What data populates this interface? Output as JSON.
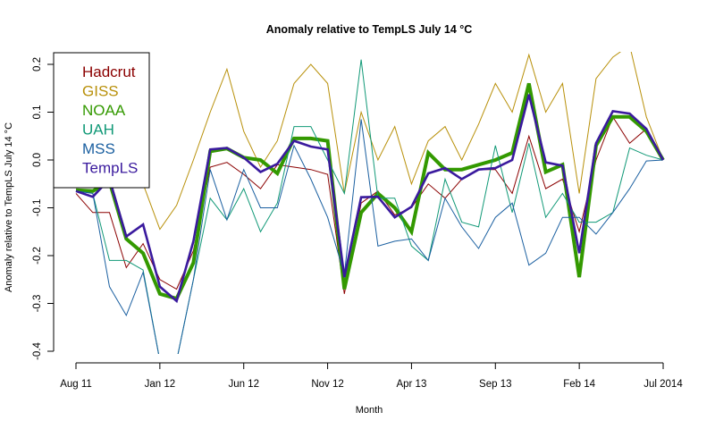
{
  "chart_data": {
    "type": "line",
    "title": "Anomaly relative to TempLS July 14 °C",
    "xlabel": "Month",
    "ylabel": "Anomaly relative to TempLS July 14 °C",
    "ylim": [
      -0.42,
      0.22
    ],
    "yticks": [
      -0.4,
      -0.3,
      -0.2,
      -0.1,
      0.0,
      0.1,
      0.2
    ],
    "ytick_labels": [
      "-0.4",
      "-0.3",
      "-0.2",
      "-0.1",
      "0.0",
      "0.1",
      "0.2"
    ],
    "x_start": "Aug 2011",
    "x_end": "Jul 2014",
    "n_months": 36,
    "xticks": [
      {
        "month_index": 0,
        "label": "Aug 11"
      },
      {
        "month_index": 5,
        "label": "Jan 12"
      },
      {
        "month_index": 10,
        "label": "Jun 12"
      },
      {
        "month_index": 15,
        "label": "Nov 12"
      },
      {
        "month_index": 20,
        "label": "Apr 13"
      },
      {
        "month_index": 25,
        "label": "Sep 13"
      },
      {
        "month_index": 30,
        "label": "Feb 14"
      },
      {
        "month_index": 35,
        "label": "Jul 2014"
      }
    ],
    "grid": false,
    "legend": {
      "placement": "top-left",
      "box": true
    },
    "series": [
      {
        "name": "Hadcrut",
        "color": "#8b0000",
        "width": "thin",
        "values": [
          -0.07,
          -0.11,
          -0.11,
          -0.225,
          -0.175,
          -0.25,
          -0.27,
          -0.19,
          -0.015,
          -0.005,
          -0.03,
          -0.06,
          -0.01,
          -0.015,
          -0.02,
          -0.03,
          -0.28,
          -0.09,
          -0.065,
          -0.115,
          -0.1,
          -0.05,
          -0.08,
          -0.04,
          -0.02,
          -0.02,
          -0.07,
          0.05,
          -0.06,
          -0.04,
          -0.15,
          0.0,
          0.09,
          0.035,
          0.065,
          0.0
        ]
      },
      {
        "name": "GISS",
        "color": "#b8900a",
        "width": "thin",
        "values": [
          -0.065,
          -0.065,
          -0.04,
          -0.02,
          -0.05,
          -0.145,
          -0.095,
          0.0,
          0.1,
          0.19,
          0.06,
          -0.015,
          0.04,
          0.16,
          0.2,
          0.16,
          -0.07,
          0.1,
          0.0,
          0.07,
          -0.05,
          0.04,
          0.07,
          0.0,
          0.075,
          0.16,
          0.1,
          0.22,
          0.1,
          0.16,
          -0.07,
          0.17,
          0.215,
          0.24,
          0.09,
          0.0
        ]
      },
      {
        "name": "NOAA",
        "color": "#339900",
        "width": "thick",
        "values": [
          -0.063,
          -0.065,
          -0.045,
          -0.165,
          -0.195,
          -0.28,
          -0.29,
          -0.215,
          0.018,
          0.024,
          0.005,
          0.0,
          -0.028,
          0.045,
          0.045,
          0.04,
          -0.27,
          -0.11,
          -0.07,
          -0.1,
          -0.15,
          0.015,
          -0.02,
          -0.02,
          -0.01,
          0.0,
          0.015,
          0.16,
          -0.025,
          -0.01,
          -0.245,
          0.03,
          0.09,
          0.09,
          0.06,
          0.0
        ]
      },
      {
        "name": "UAH",
        "color": "#119977",
        "width": "thin",
        "values": [
          -0.065,
          -0.07,
          -0.21,
          -0.21,
          -0.23,
          -0.42,
          -0.42,
          -0.25,
          -0.08,
          -0.125,
          -0.06,
          -0.15,
          -0.09,
          0.07,
          0.07,
          0.0,
          -0.07,
          0.21,
          -0.08,
          -0.08,
          -0.18,
          -0.21,
          -0.04,
          -0.13,
          -0.14,
          0.03,
          -0.11,
          0.035,
          -0.12,
          -0.07,
          -0.13,
          -0.13,
          -0.11,
          0.025,
          0.01,
          0.0
        ]
      },
      {
        "name": "MSS",
        "color": "#1a5fa0",
        "width": "thin",
        "values": [
          -0.065,
          -0.07,
          -0.265,
          -0.325,
          -0.235,
          -0.42,
          -0.42,
          -0.25,
          -0.02,
          -0.125,
          -0.02,
          -0.1,
          -0.1,
          0.03,
          -0.04,
          -0.12,
          -0.24,
          0.085,
          -0.18,
          -0.17,
          -0.165,
          -0.21,
          -0.08,
          -0.14,
          -0.185,
          -0.12,
          -0.09,
          -0.22,
          -0.195,
          -0.12,
          -0.12,
          -0.155,
          -0.11,
          -0.06,
          -0.002,
          0.0
        ]
      },
      {
        "name": "TempLS",
        "color": "#3a1a9e",
        "width": "medium",
        "values": [
          -0.065,
          -0.077,
          -0.04,
          -0.16,
          -0.135,
          -0.265,
          -0.295,
          -0.17,
          0.022,
          0.025,
          0.005,
          -0.025,
          -0.008,
          0.04,
          0.028,
          0.022,
          -0.245,
          -0.078,
          -0.077,
          -0.12,
          -0.098,
          -0.028,
          -0.017,
          -0.04,
          -0.02,
          -0.017,
          0.0,
          0.137,
          -0.005,
          -0.012,
          -0.195,
          0.035,
          0.102,
          0.097,
          0.065,
          0.0
        ]
      }
    ]
  }
}
